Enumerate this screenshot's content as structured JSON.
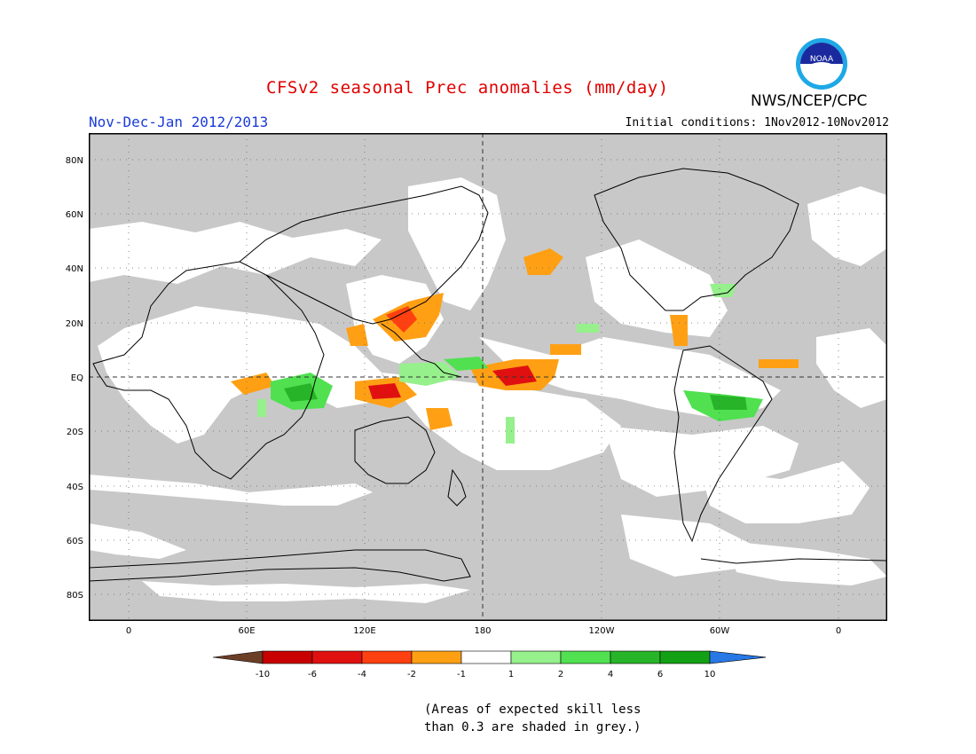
{
  "header": {
    "title": "CFSv2 seasonal Prec anomalies (mm/day)",
    "organization": "NWS/NCEP/CPC",
    "logo_text": "NOAA",
    "period": "Nov-Dec-Jan 2012/2013",
    "initial_conditions": "Initial conditions: 1Nov2012-10Nov2012"
  },
  "map": {
    "lat_labels": [
      "80N",
      "60N",
      "40N",
      "20N",
      "EQ",
      "20S",
      "40S",
      "60S",
      "80S"
    ],
    "lon_labels": [
      "0",
      "60E",
      "120E",
      "180",
      "120W",
      "60W",
      "0"
    ],
    "colors": {
      "grey_mask": "#c8c8c8",
      "land_line": "#000000"
    }
  },
  "colorbar": {
    "tick_labels": [
      "-10",
      "-6",
      "-4",
      "-2",
      "-1",
      "1",
      "2",
      "4",
      "6",
      "10"
    ],
    "colors": [
      "#6b3e26",
      "#c80000",
      "#e01010",
      "#ff4010",
      "#ffa014",
      "#ffffff",
      "#96f08c",
      "#50e050",
      "#28b428",
      "#14a014",
      "#2878e6"
    ]
  },
  "footnote": {
    "line1": "(Areas of expected skill less",
    "line2": "than 0.3 are shaded in grey.)"
  }
}
